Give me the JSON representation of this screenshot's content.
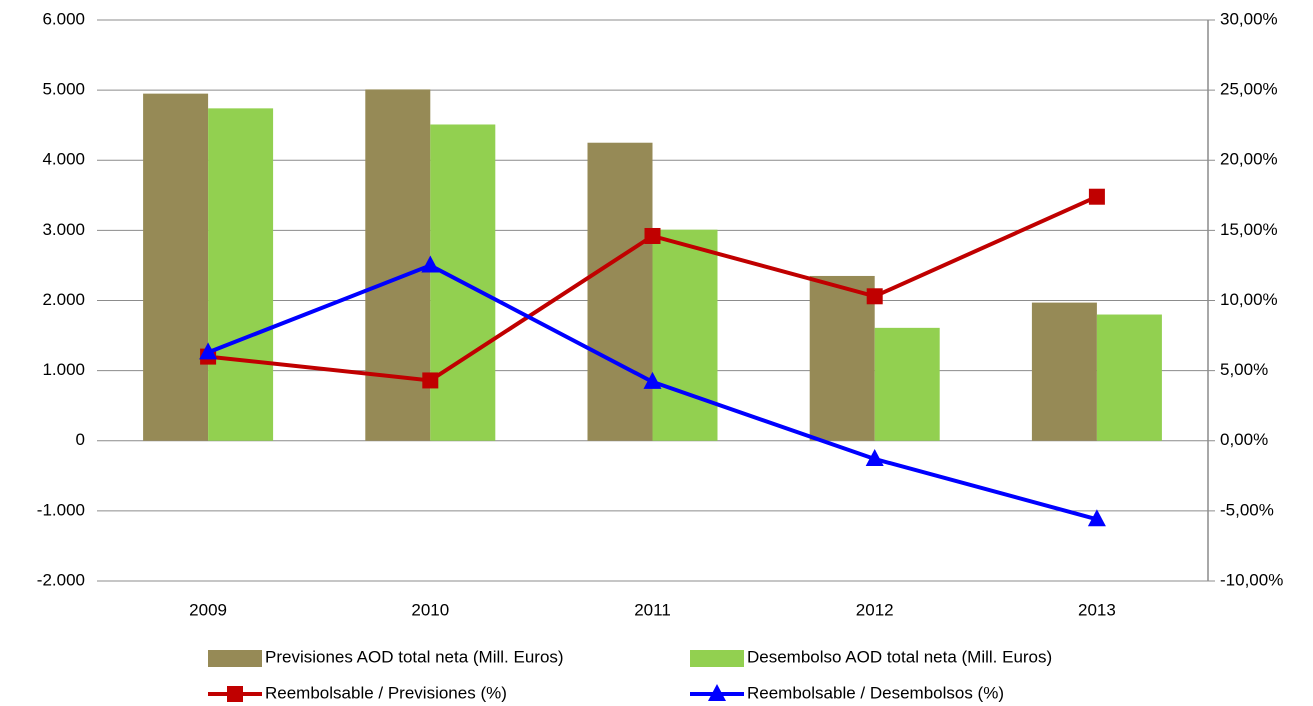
{
  "chart_data": {
    "type": "bar-line",
    "categories": [
      "2009",
      "2010",
      "2011",
      "2012",
      "2013"
    ],
    "series": [
      {
        "name": "Previsiones AOD total  neta (Mill. Euros)",
        "type": "bar",
        "color": "#968a56",
        "values": [
          4950,
          5010,
          4250,
          2350,
          1970
        ]
      },
      {
        "name": "Desembolso AOD total  neta (Mill. Euros)",
        "type": "bar",
        "color": "#92d050",
        "values": [
          4740,
          4510,
          3010,
          1610,
          1800
        ]
      },
      {
        "name": "Reembolsable / Previsiones (%)",
        "type": "line",
        "marker": "square",
        "axis": "y2",
        "color": "#c00000",
        "values": [
          6.0,
          4.3,
          14.6,
          10.3,
          17.4
        ]
      },
      {
        "name": "Reembolsable / Desembolsos (%)",
        "type": "line",
        "marker": "triangle",
        "axis": "y2",
        "color": "#0000ff",
        "values": [
          6.3,
          12.5,
          4.2,
          -1.3,
          -5.6
        ]
      }
    ],
    "ylim": [
      -2000,
      6000
    ],
    "yticks": [
      {
        "value": -2000,
        "label": "-2.000"
      },
      {
        "value": -1000,
        "label": "-1.000"
      },
      0,
      {
        "value": 1000,
        "label": "1.000"
      },
      {
        "value": 2000,
        "label": "2.000"
      },
      {
        "value": 3000,
        "label": "3.000"
      },
      {
        "value": 4000,
        "label": "4.000"
      },
      {
        "value": 5000,
        "label": "5.000"
      },
      {
        "value": 6000,
        "label": "6.000"
      }
    ],
    "y2lim": [
      -10,
      30
    ],
    "y2ticks": [
      {
        "value": -10,
        "label": "-10,00%"
      },
      {
        "value": -5,
        "label": "-5,00%"
      },
      {
        "value": 0,
        "label": "0,00%"
      },
      {
        "value": 5,
        "label": "5,00%"
      },
      {
        "value": 10,
        "label": "10,00%"
      },
      {
        "value": 15,
        "label": "15,00%"
      },
      {
        "value": 20,
        "label": "20,00%"
      },
      {
        "value": 25,
        "label": "25,00%"
      },
      {
        "value": 30,
        "label": "30,00%"
      }
    ],
    "grid": true
  }
}
